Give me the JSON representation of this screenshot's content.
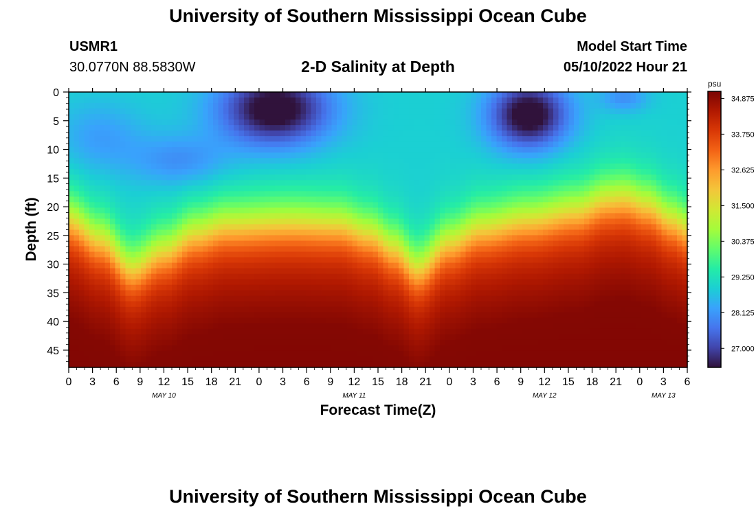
{
  "header": {
    "title": "University of Southern Mississippi Ocean Cube",
    "station_id": "USMR1",
    "station_location": "30.0770N  88.5830W",
    "plot_title": "2-D Salinity at Depth",
    "model_start_label": "Model Start Time",
    "model_start_value": "05/10/2022 Hour 21"
  },
  "footer": {
    "title": "University of Southern Mississippi Ocean Cube"
  },
  "chart_data": {
    "type": "heatmap",
    "title": "2-D Salinity at Depth",
    "xlabel": "Forecast Time(Z)",
    "ylabel": "Depth (ft)",
    "x_start_hour": 0,
    "x_end_hour": 78,
    "x_tick_step_hours": 3,
    "x_tick_labels": [
      "0",
      "3",
      "6",
      "9",
      "12",
      "15",
      "18",
      "21",
      "0",
      "3",
      "6",
      "9",
      "12",
      "15",
      "18",
      "21",
      "0",
      "3",
      "6",
      "9",
      "12",
      "15",
      "18",
      "21",
      "0",
      "3",
      "6"
    ],
    "date_labels": [
      {
        "label": "MAY 10",
        "hour": 12
      },
      {
        "label": "MAY 11",
        "hour": 36
      },
      {
        "label": "MAY 12",
        "hour": 60
      },
      {
        "label": "MAY 13",
        "hour": 75
      }
    ],
    "ylim": [
      0,
      48
    ],
    "y_ticks": [
      0,
      5,
      10,
      15,
      20,
      25,
      30,
      35,
      40,
      45
    ],
    "y_inverted": true,
    "colorbar": {
      "unit": "psu",
      "min": 26.4,
      "max": 35.1,
      "ticks": [
        "34.875",
        "33.750",
        "32.625",
        "31.500",
        "30.375",
        "29.250",
        "28.125",
        "27.000"
      ],
      "colors": [
        "#30123b",
        "#4145ab",
        "#4675ed",
        "#39a2fc",
        "#1bcfd4",
        "#24eca6",
        "#61fc6c",
        "#a4fc3b",
        "#d1e834",
        "#f3c63a",
        "#fe9b2d",
        "#f36315",
        "#d93806",
        "#b11901",
        "#7a0403"
      ]
    },
    "salinity_model": {
      "interface_depth_ft": [
        {
          "hour": 0,
          "depth": 22.0
        },
        {
          "hour": 4,
          "depth": 25.5
        },
        {
          "hour": 8,
          "depth": 30.5
        },
        {
          "hour": 12,
          "depth": 27.5
        },
        {
          "hour": 16,
          "depth": 24.5
        },
        {
          "hour": 20,
          "depth": 23.0
        },
        {
          "hour": 28,
          "depth": 22.5
        },
        {
          "hour": 34,
          "depth": 22.8
        },
        {
          "hour": 38,
          "depth": 24.5
        },
        {
          "hour": 41,
          "depth": 27.0
        },
        {
          "hour": 44,
          "depth": 30.5
        },
        {
          "hour": 48,
          "depth": 26.0
        },
        {
          "hour": 52,
          "depth": 23.5
        },
        {
          "hour": 58,
          "depth": 22.0
        },
        {
          "hour": 64,
          "depth": 20.5
        },
        {
          "hour": 68,
          "depth": 18.5
        },
        {
          "hour": 70,
          "depth": 18.2
        },
        {
          "hour": 73,
          "depth": 19.5
        },
        {
          "hour": 76,
          "depth": 22.0
        },
        {
          "hour": 78,
          "depth": 23.5
        }
      ],
      "surface_salinity": 28.9,
      "bottom_salinity": 35.0,
      "fresh_lenses": [
        {
          "hour": 26,
          "depth": 3,
          "hour_spread": 7.0,
          "depth_spread": 6.5,
          "amplitude": 2.9
        },
        {
          "hour": 14,
          "depth": 12,
          "hour_spread": 6.0,
          "depth_spread": 4.5,
          "amplitude": 0.9
        },
        {
          "hour": 4,
          "depth": 8,
          "hour_spread": 5.5,
          "depth_spread": 6.0,
          "amplitude": 0.7
        },
        {
          "hour": 58,
          "depth": 4,
          "hour_spread": 5.0,
          "depth_spread": 6.0,
          "amplitude": 2.9
        },
        {
          "hour": 70,
          "depth": 1,
          "hour_spread": 3.0,
          "depth_spread": 2.5,
          "amplitude": 0.9
        }
      ]
    }
  }
}
